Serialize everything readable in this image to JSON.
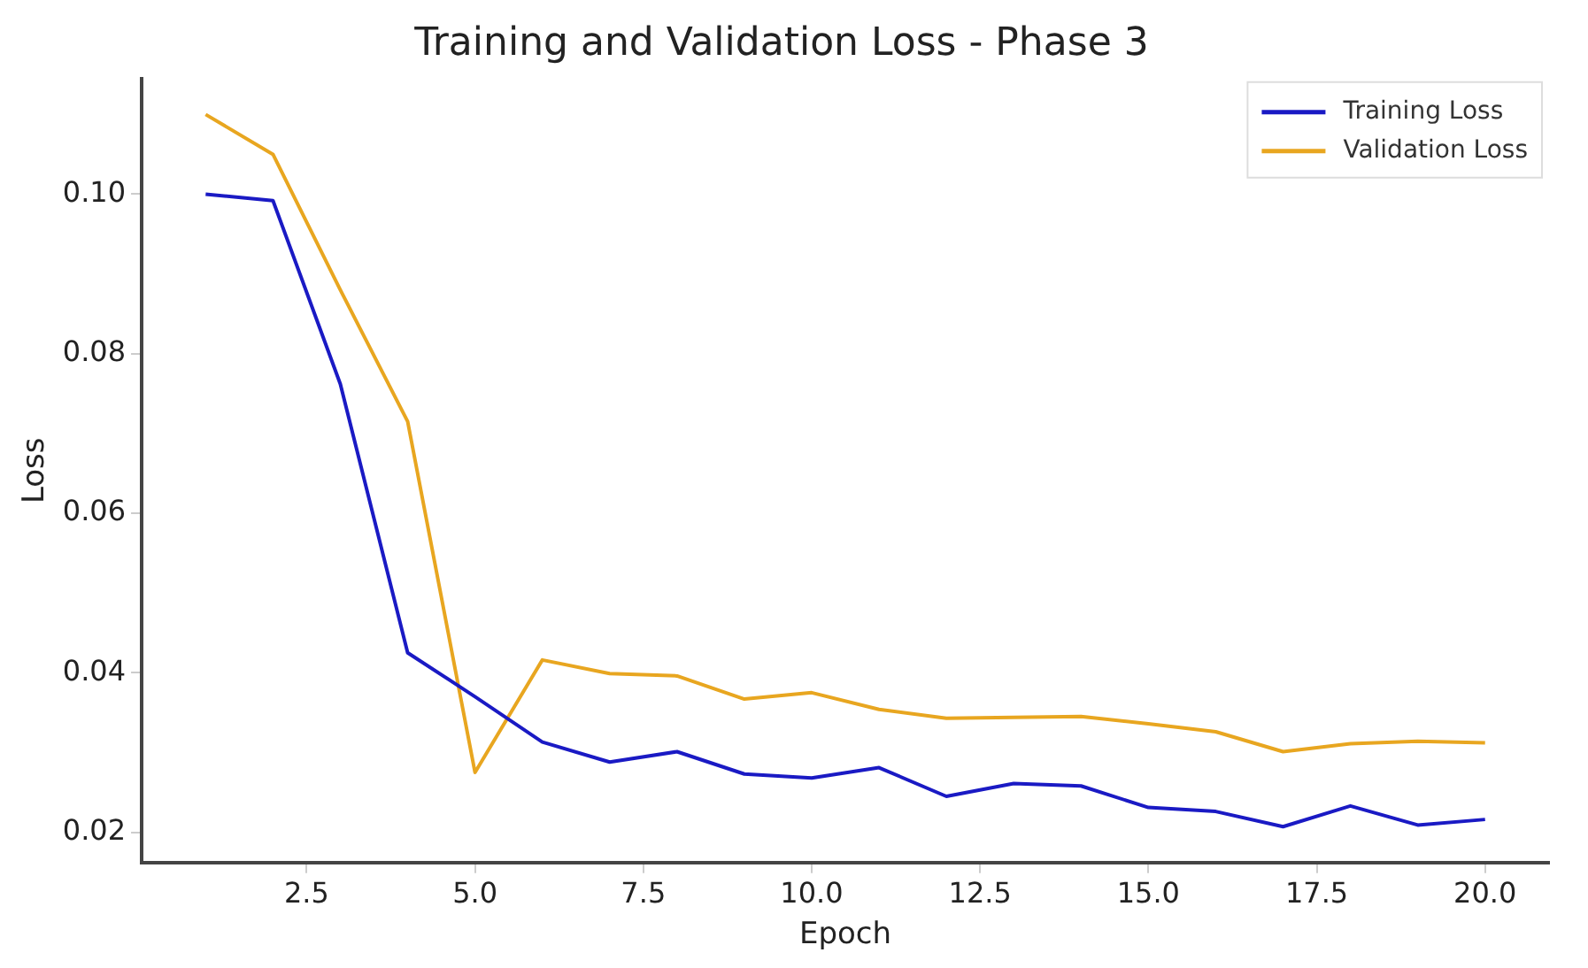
{
  "chart_data": {
    "type": "line",
    "title": "Training and Validation Loss - Phase 3",
    "xlabel": "Epoch",
    "ylabel": "Loss",
    "x": [
      1,
      2,
      3,
      4,
      5,
      6,
      7,
      8,
      9,
      10,
      11,
      12,
      13,
      14,
      15,
      16,
      17,
      18,
      19,
      20
    ],
    "series": [
      {
        "name": "Training Loss",
        "color": "#1a1ac4",
        "values": [
          0.1,
          0.0992,
          0.0762,
          0.0425,
          0.037,
          0.0313,
          0.0288,
          0.0301,
          0.0273,
          0.0268,
          0.0281,
          0.0245,
          0.0261,
          0.0258,
          0.0231,
          0.0226,
          0.0207,
          0.0233,
          0.0209,
          0.0216
        ]
      },
      {
        "name": "Validation Loss",
        "color": "#e8a620",
        "values": [
          0.11,
          0.105,
          0.088,
          0.0715,
          0.0275,
          0.0416,
          0.0399,
          0.0396,
          0.0367,
          0.0375,
          0.0354,
          0.0343,
          0.0344,
          0.0345,
          0.0336,
          0.0326,
          0.0301,
          0.0311,
          0.0314,
          0.0312
        ]
      }
    ],
    "xlim": [
      0.05,
      20.95
    ],
    "xticks": [
      {
        "value": 2.5,
        "label": "2.5"
      },
      {
        "value": 5,
        "label": "5.0"
      },
      {
        "value": 7.5,
        "label": "7.5"
      },
      {
        "value": 10,
        "label": "10.0"
      },
      {
        "value": 12.5,
        "label": "12.5"
      },
      {
        "value": 15,
        "label": "15.0"
      },
      {
        "value": 17.5,
        "label": "17.5"
      },
      {
        "value": 20,
        "label": "20.0"
      }
    ],
    "ylim": [
      0.0162,
      0.1145
    ],
    "yticks": [
      {
        "value": 0.02,
        "label": "0.02"
      },
      {
        "value": 0.04,
        "label": "0.04"
      },
      {
        "value": 0.06,
        "label": "0.06"
      },
      {
        "value": 0.08,
        "label": "0.08"
      },
      {
        "value": 0.1,
        "label": "0.10"
      }
    ],
    "grid": false,
    "legend": "top right",
    "marker": "none",
    "line_style": "solid"
  }
}
